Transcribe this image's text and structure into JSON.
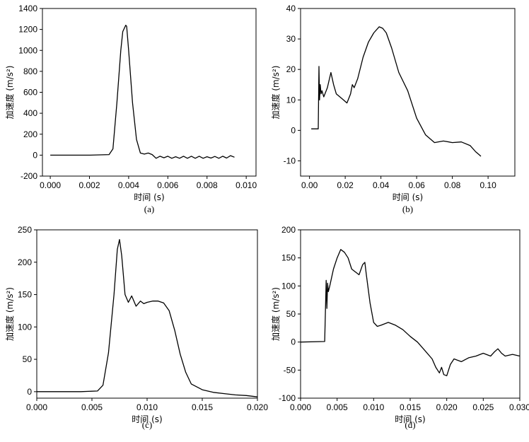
{
  "chart_data": [
    {
      "type": "line",
      "caption": "(a)",
      "xlabel": "时间 (s)",
      "ylabel": "加速度 (m/s²)",
      "xlim": [
        -0.0004,
        0.0105
      ],
      "ylim": [
        -200,
        1400
      ],
      "xticks": [
        0.0,
        0.002,
        0.004,
        0.006,
        0.008,
        0.01
      ],
      "xtick_labels": [
        "0.000",
        "0.002",
        "0.004",
        "0.006",
        "0.008",
        "0.010"
      ],
      "yticks": [
        -200,
        0,
        200,
        400,
        600,
        800,
        1000,
        1200,
        1400
      ],
      "ytick_labels": [
        "-200",
        "0",
        "200",
        "400",
        "600",
        "800",
        "1000",
        "1200",
        "1400"
      ],
      "x": [
        0,
        0.001,
        0.002,
        0.003,
        0.0032,
        0.0034,
        0.0036,
        0.0037,
        0.00385,
        0.0039,
        0.004,
        0.0042,
        0.0044,
        0.0046,
        0.0048,
        0.005,
        0.0052,
        0.0054,
        0.0056,
        0.0058,
        0.006,
        0.0062,
        0.0064,
        0.0066,
        0.0068,
        0.007,
        0.0072,
        0.0074,
        0.0076,
        0.0078,
        0.008,
        0.0082,
        0.0084,
        0.0086,
        0.0088,
        0.009,
        0.0092,
        0.0094
      ],
      "y": [
        0,
        0,
        0,
        5,
        60,
        500,
        1000,
        1180,
        1240,
        1230,
        1000,
        500,
        150,
        20,
        10,
        20,
        5,
        -30,
        -10,
        -25,
        -10,
        -30,
        -15,
        -30,
        -10,
        -30,
        -10,
        -30,
        -10,
        -30,
        -15,
        -28,
        -12,
        -30,
        -10,
        -28,
        -5,
        -20
      ]
    },
    {
      "type": "line",
      "caption": "(b)",
      "xlabel": "时间 (s)",
      "ylabel": "加速度 (m/s²)",
      "xlim": [
        -0.005,
        0.115
      ],
      "ylim": [
        -15,
        40
      ],
      "xticks": [
        0.0,
        0.02,
        0.04,
        0.06,
        0.08,
        0.1
      ],
      "xtick_labels": [
        "0.00",
        "0.02",
        "0.04",
        "0.06",
        "0.08",
        "0.10"
      ],
      "yticks": [
        -10,
        0,
        10,
        20,
        30,
        40
      ],
      "ytick_labels": [
        "-10",
        "0",
        "10",
        "20",
        "30",
        "40"
      ],
      "x": [
        0.001,
        0.0049,
        0.0053,
        0.0056,
        0.006,
        0.0065,
        0.007,
        0.008,
        0.01,
        0.012,
        0.0135,
        0.015,
        0.017,
        0.019,
        0.021,
        0.023,
        0.024,
        0.025,
        0.027,
        0.03,
        0.033,
        0.036,
        0.039,
        0.041,
        0.043,
        0.046,
        0.05,
        0.055,
        0.06,
        0.065,
        0.07,
        0.075,
        0.08,
        0.085,
        0.09,
        0.093,
        0.095,
        0.096
      ],
      "y": [
        0.5,
        0.5,
        21,
        10,
        15,
        12,
        13,
        11,
        14,
        19,
        15,
        12,
        11,
        10,
        9,
        12,
        15,
        14,
        17,
        24,
        29,
        32,
        34,
        33.5,
        32,
        27,
        19,
        13,
        4,
        -1.5,
        -4,
        -3.5,
        -4,
        -3.8,
        -5,
        -7,
        -8,
        -8.5
      ]
    },
    {
      "type": "line",
      "caption": "(c)",
      "xlabel": "时间 (s)",
      "ylabel": "加速度 (m/s²)",
      "xlim": [
        0,
        0.02
      ],
      "ylim": [
        -10,
        250
      ],
      "xticks": [
        0.0,
        0.005,
        0.01,
        0.015,
        0.02
      ],
      "xtick_labels": [
        "0.000",
        "0.005",
        "0.010",
        "0.015",
        "0.020"
      ],
      "yticks": [
        0,
        50,
        100,
        150,
        200,
        250
      ],
      "ytick_labels": [
        "0",
        "50",
        "100",
        "150",
        "200",
        "250"
      ],
      "x": [
        0,
        0.002,
        0.004,
        0.0055,
        0.006,
        0.0065,
        0.007,
        0.0073,
        0.0075,
        0.0077,
        0.008,
        0.0083,
        0.0086,
        0.009,
        0.0094,
        0.0097,
        0.01,
        0.0105,
        0.011,
        0.0115,
        0.012,
        0.0125,
        0.013,
        0.0135,
        0.014,
        0.015,
        0.016,
        0.017,
        0.018,
        0.019,
        0.02
      ],
      "y": [
        0,
        0,
        0,
        1,
        10,
        60,
        150,
        220,
        235,
        210,
        150,
        138,
        148,
        132,
        140,
        136,
        138,
        140,
        140,
        137,
        125,
        95,
        58,
        30,
        12,
        3,
        -1,
        -3,
        -5,
        -6,
        -8
      ]
    },
    {
      "type": "line",
      "caption": "(d)",
      "xlabel": "时间 (s)",
      "ylabel": "加速度 (m/s²)",
      "xlim": [
        0,
        0.03
      ],
      "ylim": [
        -100,
        200
      ],
      "xticks": [
        0.0,
        0.005,
        0.01,
        0.015,
        0.02,
        0.025,
        0.03
      ],
      "xtick_labels": [
        "0.000",
        "0.005",
        "0.010",
        "0.015",
        "0.020",
        "0.025",
        "0.030"
      ],
      "yticks": [
        -100,
        -50,
        0,
        50,
        100,
        150,
        200
      ],
      "ytick_labels": [
        "-100",
        "-50",
        "0",
        "50",
        "100",
        "150",
        "200"
      ],
      "x": [
        0,
        0.0033,
        0.0035,
        0.0036,
        0.0037,
        0.0038,
        0.004,
        0.0045,
        0.005,
        0.0055,
        0.006,
        0.0065,
        0.007,
        0.0075,
        0.008,
        0.0085,
        0.0088,
        0.009,
        0.0095,
        0.01,
        0.0105,
        0.011,
        0.012,
        0.013,
        0.014,
        0.015,
        0.016,
        0.017,
        0.018,
        0.0185,
        0.019,
        0.0193,
        0.0196,
        0.02,
        0.0205,
        0.021,
        0.022,
        0.023,
        0.024,
        0.025,
        0.026,
        0.0265,
        0.027,
        0.0275,
        0.028,
        0.029,
        0.03
      ],
      "y": [
        0,
        1,
        110,
        60,
        105,
        90,
        100,
        130,
        150,
        165,
        160,
        150,
        130,
        125,
        120,
        138,
        142,
        120,
        70,
        35,
        28,
        30,
        35,
        30,
        22,
        10,
        0,
        -15,
        -30,
        -45,
        -55,
        -45,
        -58,
        -60,
        -40,
        -30,
        -35,
        -28,
        -25,
        -20,
        -25,
        -18,
        -12,
        -20,
        -25,
        -22,
        -25
      ]
    }
  ]
}
